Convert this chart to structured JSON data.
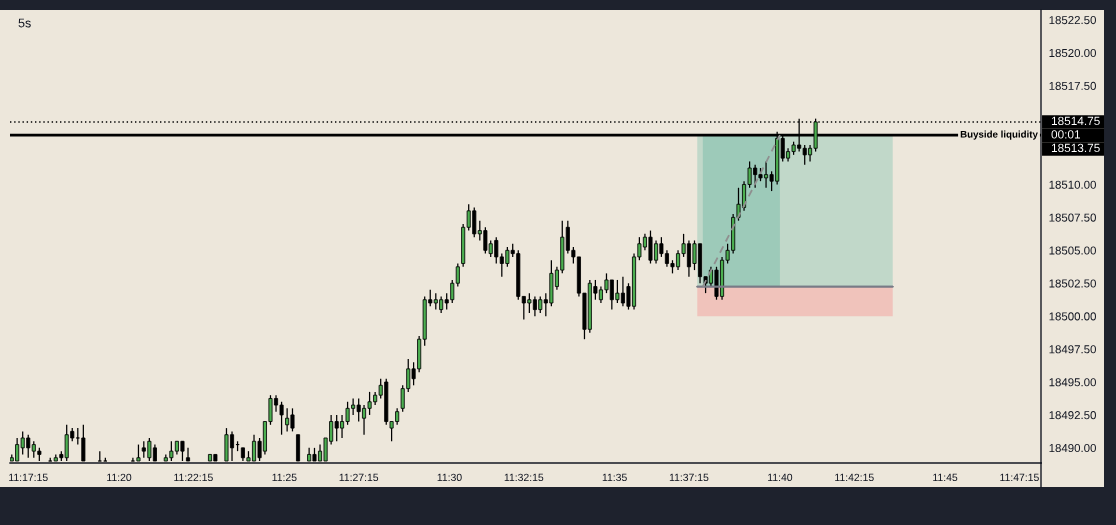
{
  "chart_data": {
    "type": "candlestick",
    "title": "5s",
    "x": [
      11.2792,
      11.2819,
      11.2847,
      11.2875,
      11.2903,
      11.2931,
      11.2986,
      11.3014,
      11.3042,
      11.3069,
      11.3097,
      11.3125,
      11.3153,
      11.3236,
      11.3264,
      11.3403,
      11.3431,
      11.3458,
      11.3486,
      11.3514,
      11.3569,
      11.3597,
      11.3625,
      11.3653,
      11.3681,
      11.3792,
      11.3819,
      11.3875,
      11.3903,
      11.3931,
      11.3958,
      11.3986,
      11.4014,
      11.4042,
      11.4069,
      11.4097,
      11.4125,
      11.4153,
      11.4181,
      11.4208,
      11.4236,
      11.4292,
      11.4319,
      11.4347,
      11.4375,
      11.4403,
      11.4431,
      11.4458,
      11.4486,
      11.4514,
      11.4542,
      11.4569,
      11.4597,
      11.4625,
      11.4653,
      11.4681,
      11.4708,
      11.4736,
      11.4764,
      11.4792,
      11.4819,
      11.4847,
      11.4875,
      11.4903,
      11.4931,
      11.4958,
      11.4986,
      11.5014,
      11.5042,
      11.5069,
      11.5097,
      11.5125,
      11.5153,
      11.5181,
      11.5208,
      11.5236,
      11.5264,
      11.5292,
      11.5319,
      11.5347,
      11.5375,
      11.5403,
      11.5431,
      11.5458,
      11.5486,
      11.5514,
      11.5542,
      11.5569,
      11.5597,
      11.5625,
      11.5653,
      11.5681,
      11.5708,
      11.5736,
      11.5764,
      11.5792,
      11.5819,
      11.5847,
      11.5875,
      11.5903,
      11.5931,
      11.5958,
      11.5986,
      11.6014,
      11.6042,
      11.6069,
      11.6097,
      11.6125,
      11.6153,
      11.6181,
      11.6208,
      11.6236,
      11.6264,
      11.6292,
      11.6319,
      11.6347,
      11.6375,
      11.6403,
      11.6431,
      11.6458,
      11.6486,
      11.6514,
      11.6542,
      11.6569,
      11.6597,
      11.6625,
      11.6653,
      11.6681,
      11.6708,
      11.6736,
      11.6764,
      11.6792,
      11.6819,
      11.6847
    ],
    "ohlc": [
      [
        18489.0,
        18489.5,
        18489.0,
        18489.25
      ],
      [
        18489.0,
        18490.75,
        18489.0,
        18490.25
      ],
      [
        18490.0,
        18491.25,
        18489.5,
        18490.75
      ],
      [
        18490.75,
        18491.0,
        18489.25,
        18490.0
      ],
      [
        18489.75,
        18490.5,
        18489.25,
        18490.25
      ],
      [
        18489.75,
        18490.0,
        18489.0,
        18489.5
      ],
      [
        18489.0,
        18489.25,
        18489.0,
        18489.0
      ],
      [
        18489.0,
        18489.5,
        18489.0,
        18489.25
      ],
      [
        18489.5,
        18489.75,
        18489.0,
        18489.25
      ],
      [
        18489.25,
        18491.75,
        18489.0,
        18491.0
      ],
      [
        18491.25,
        18491.5,
        18490.5,
        18490.75
      ],
      [
        18490.75,
        18491.5,
        18490.25,
        18490.75
      ],
      [
        18490.75,
        18491.75,
        18489.0,
        18489.0
      ],
      [
        18489.0,
        18489.75,
        18489.0,
        18489.0
      ],
      [
        18489.0,
        18489.25,
        18489.0,
        18489.0
      ],
      [
        18489.0,
        18489.25,
        18489.0,
        18489.0
      ],
      [
        18489.0,
        18490.25,
        18489.0,
        18489.25
      ],
      [
        18490.0,
        18490.5,
        18489.25,
        18489.75
      ],
      [
        18489.25,
        18490.75,
        18489.0,
        18490.5
      ],
      [
        18490.0,
        18490.25,
        18489.0,
        18489.0
      ],
      [
        18489.0,
        18489.5,
        18489.0,
        18489.25
      ],
      [
        18489.25,
        18490.5,
        18489.0,
        18489.75
      ],
      [
        18489.75,
        18490.5,
        18489.5,
        18490.5
      ],
      [
        18490.5,
        18490.5,
        18489.0,
        18489.75
      ],
      [
        18489.25,
        18490.0,
        18489.0,
        18489.0
      ],
      [
        18489.0,
        18489.5,
        18489.0,
        18489.5
      ],
      [
        18489.5,
        18489.5,
        18489.0,
        18489.0
      ],
      [
        18489.0,
        18491.5,
        18489.0,
        18491.0
      ],
      [
        18491.0,
        18491.25,
        18489.0,
        18490.0
      ],
      [
        18490.25,
        18490.5,
        18489.75,
        18490.25
      ],
      [
        18490.0,
        18490.0,
        18489.0,
        18489.25
      ],
      [
        18489.0,
        18489.75,
        18489.0,
        18489.25
      ],
      [
        18489.0,
        18491.0,
        18489.0,
        18490.5
      ],
      [
        18490.5,
        18490.75,
        18489.0,
        18489.25
      ],
      [
        18489.75,
        18492.0,
        18489.5,
        18492.0
      ],
      [
        18492.0,
        18494.0,
        18491.75,
        18493.75
      ],
      [
        18493.75,
        18494.0,
        18492.75,
        18493.25
      ],
      [
        18493.25,
        18493.5,
        18491.0,
        18492.5
      ],
      [
        18491.75,
        18493.0,
        18491.25,
        18492.25
      ],
      [
        18492.5,
        18493.0,
        18491.25,
        18491.5
      ],
      [
        18491.0,
        18491.0,
        18489.0,
        18489.0
      ],
      [
        18489.0,
        18490.0,
        18489.0,
        18489.5
      ],
      [
        18489.5,
        18490.0,
        18489.0,
        18489.0
      ],
      [
        18489.0,
        18490.25,
        18489.0,
        18489.75
      ],
      [
        18489.0,
        18490.75,
        18489.0,
        18490.75
      ],
      [
        18490.5,
        18492.5,
        18490.25,
        18492.0
      ],
      [
        18492.0,
        18492.5,
        18490.5,
        18491.5
      ],
      [
        18491.5,
        18492.5,
        18490.75,
        18492.0
      ],
      [
        18492.0,
        18493.5,
        18491.75,
        18493.0
      ],
      [
        18493.0,
        18493.75,
        18492.5,
        18493.25
      ],
      [
        18493.25,
        18493.75,
        18492.0,
        18492.75
      ],
      [
        18492.25,
        18493.25,
        18491.0,
        18493.0
      ],
      [
        18493.0,
        18494.25,
        18492.5,
        18493.5
      ],
      [
        18493.5,
        18494.25,
        18493.25,
        18494.0
      ],
      [
        18494.0,
        18495.25,
        18493.75,
        18494.75
      ],
      [
        18495.0,
        18495.25,
        18491.75,
        18492.0
      ],
      [
        18491.5,
        18492.0,
        18490.5,
        18492.0
      ],
      [
        18492.0,
        18493.0,
        18491.75,
        18492.75
      ],
      [
        18493.0,
        18494.75,
        18492.75,
        18494.5
      ],
      [
        18494.5,
        18496.75,
        18494.25,
        18496.0
      ],
      [
        18496.0,
        18496.5,
        18494.75,
        18495.25
      ],
      [
        18496.0,
        18498.5,
        18495.75,
        18498.25
      ],
      [
        18498.25,
        18501.5,
        18497.75,
        18501.25
      ],
      [
        18501.25,
        18502.0,
        18500.75,
        18501.0
      ],
      [
        18501.0,
        18501.75,
        18500.5,
        18501.25
      ],
      [
        18500.5,
        18501.5,
        18500.25,
        18501.25
      ],
      [
        18501.25,
        18501.75,
        18500.5,
        18501.0
      ],
      [
        18501.25,
        18502.75,
        18501.0,
        18502.5
      ],
      [
        18502.5,
        18504.0,
        18502.25,
        18503.75
      ],
      [
        18504.0,
        18507.0,
        18503.75,
        18506.75
      ],
      [
        18506.75,
        18508.5,
        18506.5,
        18508.0
      ],
      [
        18508.0,
        18508.25,
        18506.0,
        18506.25
      ],
      [
        18506.25,
        18507.25,
        18505.75,
        18506.5
      ],
      [
        18506.5,
        18506.75,
        18504.75,
        18505.0
      ],
      [
        18504.75,
        18505.75,
        18504.5,
        18505.5
      ],
      [
        18505.75,
        18506.0,
        18504.0,
        18504.5
      ],
      [
        18504.5,
        18504.75,
        18503.0,
        18504.0
      ],
      [
        18504.0,
        18505.25,
        18503.75,
        18505.0
      ],
      [
        18505.0,
        18505.5,
        18504.5,
        18504.75
      ],
      [
        18504.75,
        18505.0,
        18501.25,
        18501.5
      ],
      [
        18501.5,
        18501.5,
        18499.75,
        18501.0
      ],
      [
        18501.0,
        18501.75,
        18500.25,
        18501.25
      ],
      [
        18501.25,
        18501.5,
        18500.0,
        18500.5
      ],
      [
        18500.5,
        18501.5,
        18500.25,
        18501.25
      ],
      [
        18501.25,
        18501.75,
        18500.0,
        18501.0
      ],
      [
        18501.0,
        18504.25,
        18500.75,
        18503.25
      ],
      [
        18502.25,
        18503.75,
        18502.0,
        18503.5
      ],
      [
        18503.5,
        18507.25,
        18503.25,
        18506.0
      ],
      [
        18506.75,
        18507.25,
        18504.75,
        18505.0
      ],
      [
        18505.0,
        18505.25,
        18504.0,
        18504.5
      ],
      [
        18504.5,
        18504.5,
        18501.5,
        18501.75
      ],
      [
        18501.75,
        18501.75,
        18498.25,
        18499.0
      ],
      [
        18499.0,
        18502.75,
        18498.75,
        18502.5
      ],
      [
        18502.25,
        18502.75,
        18501.25,
        18501.75
      ],
      [
        18501.25,
        18502.25,
        18501.0,
        18502.0
      ],
      [
        18502.0,
        18503.25,
        18501.75,
        18502.75
      ],
      [
        18502.75,
        18502.75,
        18500.5,
        18501.25
      ],
      [
        18501.25,
        18502.75,
        18501.0,
        18501.75
      ],
      [
        18501.75,
        18503.0,
        18500.75,
        18501.0
      ],
      [
        18502.25,
        18502.5,
        18500.5,
        18500.75
      ],
      [
        18500.75,
        18504.75,
        18500.5,
        18504.5
      ],
      [
        18504.5,
        18506.0,
        18504.25,
        18505.5
      ],
      [
        18505.25,
        18506.25,
        18505.0,
        18506.0
      ],
      [
        18506.0,
        18506.5,
        18504.0,
        18504.25
      ],
      [
        18504.25,
        18505.75,
        18504.0,
        18505.5
      ],
      [
        18505.5,
        18506.0,
        18504.5,
        18504.75
      ],
      [
        18504.75,
        18505.0,
        18503.75,
        18504.0
      ],
      [
        18504.0,
        18504.25,
        18503.25,
        18503.75
      ],
      [
        18503.75,
        18505.0,
        18503.5,
        18504.75
      ],
      [
        18504.75,
        18506.25,
        18504.5,
        18505.5
      ],
      [
        18505.5,
        18505.75,
        18503.0,
        18503.75
      ],
      [
        18504.0,
        18505.75,
        18503.5,
        18505.5
      ],
      [
        18505.5,
        18505.5,
        18502.5,
        18503.0
      ],
      [
        18503.0,
        18503.0,
        18501.75,
        18502.5
      ],
      [
        18502.5,
        18503.75,
        18502.25,
        18503.5
      ],
      [
        18503.5,
        18503.75,
        18501.25,
        18501.5
      ],
      [
        18501.5,
        18504.5,
        18501.25,
        18504.25
      ],
      [
        18504.25,
        18505.5,
        18504.0,
        18505.0
      ],
      [
        18505.0,
        18507.75,
        18504.75,
        18507.5
      ],
      [
        18507.5,
        18509.75,
        18507.25,
        18508.5
      ],
      [
        18508.25,
        18510.25,
        18508.0,
        18510.0
      ],
      [
        18510.0,
        18511.75,
        18509.75,
        18511.25
      ],
      [
        18511.25,
        18511.5,
        18509.75,
        18510.75
      ],
      [
        18510.75,
        18511.25,
        18510.25,
        18510.5
      ],
      [
        18510.5,
        18511.75,
        18509.75,
        18510.75
      ],
      [
        18510.75,
        18511.0,
        18509.5,
        18510.25
      ],
      [
        18510.25,
        18514.0,
        18510.0,
        18513.5
      ],
      [
        18513.5,
        18513.75,
        18511.75,
        18512.0
      ],
      [
        18512.0,
        18512.75,
        18511.75,
        18512.5
      ],
      [
        18512.5,
        18513.25,
        18512.25,
        18513.0
      ],
      [
        18513.0,
        18515.0,
        18512.5,
        18512.75
      ],
      [
        18512.75,
        18513.0,
        18511.5,
        18512.25
      ],
      [
        18512.25,
        18513.0,
        18511.75,
        18512.75
      ],
      [
        18512.75,
        18515.0,
        18512.5,
        18514.75
      ]
    ],
    "colors": [
      "#4caf50",
      "#4caf50",
      "#4caf50",
      "#000000",
      "#4caf50",
      "#000000",
      "#000000",
      "#4caf50",
      "#000000",
      "#4caf50",
      "#000000",
      "#000000",
      "#000000",
      "#000000",
      "#000000",
      "#000000",
      "#4caf50",
      "#000000",
      "#4caf50",
      "#000000",
      "#4caf50",
      "#4caf50",
      "#4caf50",
      "#000000",
      "#000000",
      "#4caf50",
      "#000000",
      "#4caf50",
      "#000000",
      "#000000",
      "#000000",
      "#4caf50",
      "#4caf50",
      "#000000",
      "#4caf50",
      "#4caf50",
      "#000000",
      "#000000",
      "#4caf50",
      "#000000",
      "#000000",
      "#4caf50",
      "#000000",
      "#4caf50",
      "#4caf50",
      "#4caf50",
      "#000000",
      "#4caf50",
      "#4caf50",
      "#4caf50",
      "#000000",
      "#4caf50",
      "#4caf50",
      "#4caf50",
      "#4caf50",
      "#000000",
      "#4caf50",
      "#4caf50",
      "#4caf50",
      "#4caf50",
      "#000000",
      "#4caf50",
      "#4caf50",
      "#000000",
      "#4caf50",
      "#4caf50",
      "#000000",
      "#4caf50",
      "#4caf50",
      "#4caf50",
      "#4caf50",
      "#000000",
      "#4caf50",
      "#000000",
      "#4caf50",
      "#000000",
      "#000000",
      "#4caf50",
      "#000000",
      "#000000",
      "#000000",
      "#4caf50",
      "#000000",
      "#4caf50",
      "#000000",
      "#4caf50",
      "#4caf50",
      "#4caf50",
      "#000000",
      "#000000",
      "#000000",
      "#000000",
      "#4caf50",
      "#000000",
      "#4caf50",
      "#4caf50",
      "#000000",
      "#4caf50",
      "#000000",
      "#000000",
      "#4caf50",
      "#4caf50",
      "#4caf50",
      "#000000",
      "#4caf50",
      "#000000",
      "#000000",
      "#000000",
      "#4caf50",
      "#4caf50",
      "#000000",
      "#4caf50",
      "#000000",
      "#000000",
      "#4caf50",
      "#000000",
      "#4caf50",
      "#4caf50",
      "#4caf50",
      "#4caf50",
      "#4caf50",
      "#4caf50",
      "#000000",
      "#000000",
      "#4caf50",
      "#000000",
      "#4caf50",
      "#000000",
      "#4caf50",
      "#4caf50",
      "#000000",
      "#000000",
      "#4caf50",
      "#4caf50"
    ],
    "series": [
      {
        "type": "line",
        "x": [
          11.625,
          11.7236
        ],
        "values": [
          18502.25,
          18502.25
        ],
        "lower": [
          18502.25,
          18502.25
        ],
        "upper": [
          18513.75,
          18513.75
        ],
        "color": "#787b86",
        "colors": [
          "#c1d8c9",
          "#c1d8c9"
        ]
      },
      {
        "type": "line",
        "x": [
          11.625,
          11.7236
        ],
        "values": [
          18502.25,
          18502.25
        ],
        "lower": [
          18500,
          18500
        ],
        "upper": [
          18502.25,
          18502.25
        ],
        "color": "#787b86",
        "colors": [
          "#f0c3bb",
          "#f0c3bb"
        ]
      },
      {
        "type": "line",
        "x": [
          11.6278,
          11.6667
        ],
        "values": [
          18502.25,
          18513.75
        ],
        "lower": [
          18502.25,
          18502.25
        ],
        "upper": [
          18513.75,
          18513.75
        ],
        "color": "#8f8f8f",
        "colors": [
          "#9dcab9",
          "#9dcab9"
        ],
        "line_style": "dashed"
      }
    ],
    "xlim": [
      11.2783,
      11.7984
    ],
    "xticks": [
      {
        "value": 11.2875,
        "label": "11:17:15"
      },
      {
        "value": 11.3333,
        "label": "11:20"
      },
      {
        "value": 11.3708,
        "label": "11:22:15"
      },
      {
        "value": 11.4167,
        "label": "11:25"
      },
      {
        "value": 11.4542,
        "label": "11:27:15"
      },
      {
        "value": 11.5,
        "label": "11:30"
      },
      {
        "value": 11.5375,
        "label": "11:32:15"
      },
      {
        "value": 11.5833,
        "label": "11:35"
      },
      {
        "value": 11.6208,
        "label": "11:37:15"
      },
      {
        "value": 11.6667,
        "label": "11:40"
      },
      {
        "value": 11.7042,
        "label": "11:42:15"
      },
      {
        "value": 11.75,
        "label": "11:45"
      },
      {
        "value": 11.7875,
        "label": "11:47:15"
      }
    ],
    "ylim": [
      18488.85,
      18523.25
    ],
    "yticks": [
      {
        "value": 18490,
        "label": "18490.00"
      },
      {
        "value": 18492.5,
        "label": "18492.50"
      },
      {
        "value": 18495,
        "label": "18495.00"
      },
      {
        "value": 18497.5,
        "label": "18497.50"
      },
      {
        "value": 18500,
        "label": "18500.00"
      },
      {
        "value": 18502.5,
        "label": "18502.50"
      },
      {
        "value": 18505,
        "label": "18505.00"
      },
      {
        "value": 18507.5,
        "label": "18507.50"
      },
      {
        "value": 18510,
        "label": "18510.00"
      },
      {
        "value": 18517.5,
        "label": "18517.50"
      },
      {
        "value": 18520,
        "label": "18520.00"
      },
      {
        "value": 18522.5,
        "label": "18522.50"
      }
    ],
    "ref_lines": [
      {
        "axis": "y",
        "value": 18514.75,
        "color": "#000000",
        "line_style": "dotted"
      },
      {
        "axis": "y",
        "value": 18513.75,
        "label": "Buyside liquidity",
        "color": "#000000"
      }
    ],
    "annotations": [
      "18514.75",
      "00:01",
      "18513.75"
    ]
  }
}
